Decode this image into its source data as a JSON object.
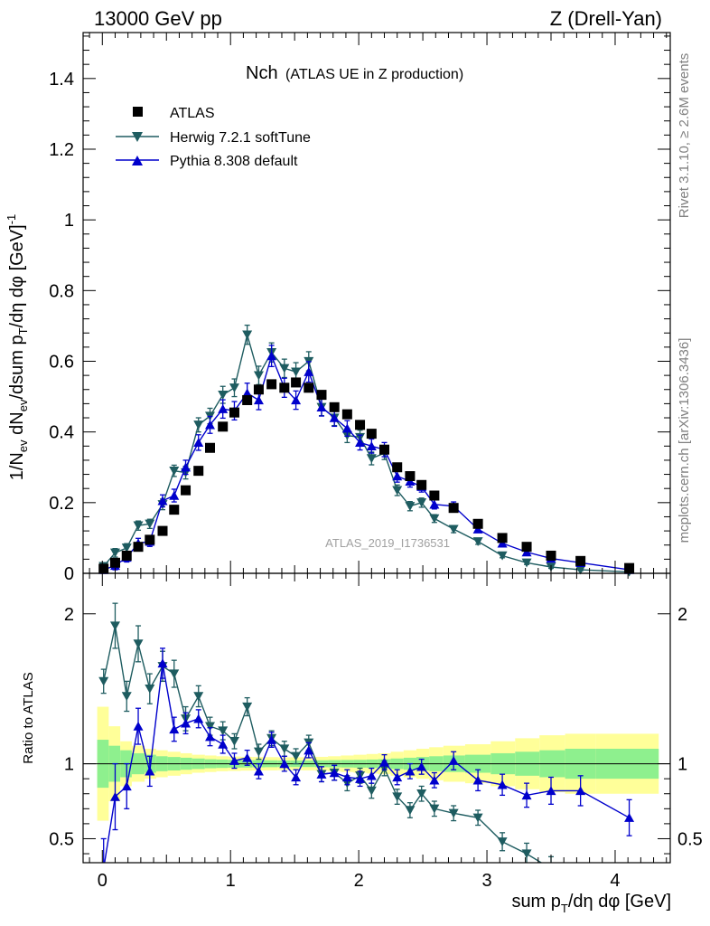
{
  "header": {
    "left": "13000 GeV pp",
    "right": "Z (Drell-Yan)"
  },
  "side_text": {
    "rivet": "Rivet 3.1.10, ≥ 2.6M events",
    "mcplots": "mcplots.cern.ch [arXiv:1306.3436]"
  },
  "chart_data": {
    "type": "scatter",
    "title_main": "Nch",
    "title_sub": "(ATLAS UE in Z production)",
    "analysis_label": "ATLAS_2019_I1736531",
    "xlabel": "sum pT/dη dφ [GeV]",
    "ylabel": "1/Nev dNev/dsum pT/dη dφ [GeV]^-1",
    "ratio_ylabel": "Ratio to ATLAS",
    "xlim": [
      -0.15,
      4.43
    ],
    "ylim": [
      0,
      1.53
    ],
    "ratio_ylim": [
      0.34,
      2.27
    ],
    "x_ticks": [
      0,
      1,
      2,
      3,
      4
    ],
    "y_ticks": [
      0,
      0.2,
      0.4,
      0.6,
      0.8,
      1,
      1.2,
      1.4
    ],
    "ratio_ticks": [
      0.5,
      1,
      2
    ],
    "ratio_tick_labels": [
      "0.5",
      "1",
      "2"
    ],
    "legend_position": "top-left",
    "colors": {
      "atlas": "#000000",
      "herwig": "#1e5c60",
      "pythia": "#0000cc",
      "band_inner": "#8ef08e",
      "band_outer": "#ffff99"
    },
    "series": [
      {
        "name": "ATLAS",
        "marker": "square",
        "x": [
          0.01,
          0.1,
          0.19,
          0.28,
          0.37,
          0.47,
          0.56,
          0.65,
          0.75,
          0.84,
          0.94,
          1.03,
          1.13,
          1.22,
          1.32,
          1.42,
          1.51,
          1.61,
          1.71,
          1.81,
          1.91,
          2.01,
          2.1,
          2.2,
          2.3,
          2.4,
          2.49,
          2.59,
          2.74,
          2.93,
          3.12,
          3.31,
          3.5,
          3.73,
          4.11
        ],
        "y": [
          0.013,
          0.03,
          0.05,
          0.075,
          0.095,
          0.12,
          0.18,
          0.235,
          0.29,
          0.355,
          0.415,
          0.455,
          0.49,
          0.52,
          0.535,
          0.525,
          0.54,
          0.525,
          0.505,
          0.47,
          0.45,
          0.42,
          0.395,
          0.35,
          0.3,
          0.275,
          0.25,
          0.22,
          0.185,
          0.14,
          0.1,
          0.075,
          0.05,
          0.035,
          0.015
        ]
      },
      {
        "name": "Herwig 7.2.1 softTune",
        "marker": "triangle-down",
        "x": [
          0.01,
          0.1,
          0.19,
          0.28,
          0.37,
          0.47,
          0.56,
          0.65,
          0.75,
          0.84,
          0.94,
          1.03,
          1.13,
          1.22,
          1.32,
          1.42,
          1.51,
          1.61,
          1.71,
          1.81,
          1.91,
          2.01,
          2.1,
          2.2,
          2.3,
          2.4,
          2.49,
          2.59,
          2.74,
          2.93,
          3.12,
          3.31,
          3.5,
          3.73,
          4.11
        ],
        "y": [
          0.02,
          0.058,
          0.072,
          0.135,
          0.14,
          0.195,
          0.29,
          0.285,
          0.42,
          0.445,
          0.505,
          0.525,
          0.675,
          0.56,
          0.625,
          0.58,
          0.57,
          0.6,
          0.47,
          0.44,
          0.39,
          0.385,
          0.325,
          0.34,
          0.235,
          0.19,
          0.2,
          0.155,
          0.125,
          0.09,
          0.05,
          0.03,
          0.018,
          0.01,
          0.004
        ],
        "err": [
          0.01,
          0.012,
          0.012,
          0.013,
          0.013,
          0.015,
          0.016,
          0.018,
          0.02,
          0.022,
          0.024,
          0.025,
          0.027,
          0.026,
          0.027,
          0.026,
          0.026,
          0.027,
          0.024,
          0.022,
          0.02,
          0.02,
          0.018,
          0.018,
          0.015,
          0.013,
          0.013,
          0.011,
          0.01,
          0.008,
          0.006,
          0.005,
          0.004,
          0.003,
          0.002
        ]
      },
      {
        "name": "Pythia 8.308 default",
        "marker": "triangle-up",
        "x": [
          0.01,
          0.1,
          0.19,
          0.28,
          0.37,
          0.47,
          0.56,
          0.65,
          0.75,
          0.84,
          0.94,
          1.03,
          1.13,
          1.22,
          1.32,
          1.42,
          1.51,
          1.61,
          1.71,
          1.81,
          1.91,
          2.01,
          2.1,
          2.2,
          2.3,
          2.4,
          2.49,
          2.59,
          2.74,
          2.93,
          3.12,
          3.31,
          3.5,
          3.73,
          4.11
        ],
        "y": [
          0.01,
          0.022,
          0.045,
          0.085,
          0.09,
          0.205,
          0.22,
          0.3,
          0.37,
          0.42,
          0.465,
          0.46,
          0.51,
          0.49,
          0.615,
          0.525,
          0.49,
          0.57,
          0.47,
          0.44,
          0.41,
          0.37,
          0.36,
          0.35,
          0.275,
          0.26,
          0.245,
          0.195,
          0.19,
          0.125,
          0.085,
          0.06,
          0.042,
          0.03,
          0.01
        ],
        "err": [
          0.01,
          0.012,
          0.013,
          0.014,
          0.014,
          0.017,
          0.018,
          0.02,
          0.022,
          0.024,
          0.026,
          0.026,
          0.028,
          0.027,
          0.03,
          0.027,
          0.026,
          0.029,
          0.025,
          0.024,
          0.022,
          0.021,
          0.02,
          0.02,
          0.017,
          0.016,
          0.015,
          0.013,
          0.012,
          0.009,
          0.007,
          0.006,
          0.005,
          0.004,
          0.003
        ]
      }
    ],
    "ratio_series": [
      {
        "name": "Herwig 7.2.1 softTune",
        "x": [
          0.01,
          0.1,
          0.19,
          0.28,
          0.37,
          0.47,
          0.56,
          0.65,
          0.75,
          0.84,
          0.94,
          1.03,
          1.13,
          1.22,
          1.32,
          1.42,
          1.51,
          1.61,
          1.71,
          1.81,
          1.91,
          2.01,
          2.1,
          2.2,
          2.3,
          2.4,
          2.49,
          2.59,
          2.74,
          2.93,
          3.12,
          3.31,
          3.5
        ],
        "y": [
          1.55,
          1.92,
          1.45,
          1.8,
          1.5,
          1.65,
          1.6,
          1.3,
          1.45,
          1.25,
          1.22,
          1.15,
          1.38,
          1.08,
          1.17,
          1.1,
          1.05,
          1.14,
          0.93,
          0.94,
          0.87,
          0.92,
          0.82,
          0.97,
          0.78,
          0.69,
          0.8,
          0.7,
          0.67,
          0.64,
          0.48,
          0.4,
          0.3
        ],
        "err": [
          0.08,
          0.15,
          0.1,
          0.12,
          0.1,
          0.1,
          0.09,
          0.08,
          0.07,
          0.06,
          0.06,
          0.05,
          0.06,
          0.05,
          0.05,
          0.05,
          0.05,
          0.05,
          0.05,
          0.05,
          0.05,
          0.05,
          0.05,
          0.05,
          0.05,
          0.05,
          0.05,
          0.05,
          0.05,
          0.05,
          0.06,
          0.07,
          0.08
        ]
      },
      {
        "name": "Pythia 8.308 default",
        "x": [
          0.01,
          0.1,
          0.19,
          0.28,
          0.37,
          0.47,
          0.56,
          0.65,
          0.75,
          0.84,
          0.94,
          1.03,
          1.13,
          1.22,
          1.32,
          1.42,
          1.51,
          1.61,
          1.71,
          1.81,
          1.91,
          2.01,
          2.1,
          2.2,
          2.3,
          2.4,
          2.49,
          2.59,
          2.74,
          2.93,
          3.12,
          3.31,
          3.5,
          3.73,
          4.11
        ],
        "y": [
          0.3,
          0.78,
          0.85,
          1.25,
          0.95,
          1.67,
          1.23,
          1.27,
          1.3,
          1.18,
          1.13,
          1.02,
          1.04,
          0.95,
          1.16,
          1.0,
          0.91,
          1.09,
          0.93,
          0.94,
          0.91,
          0.9,
          0.92,
          1.01,
          0.91,
          0.95,
          0.98,
          0.89,
          1.02,
          0.89,
          0.86,
          0.79,
          0.82,
          0.82,
          0.64
        ],
        "err": [
          0.2,
          0.22,
          0.15,
          0.12,
          0.1,
          0.1,
          0.08,
          0.07,
          0.06,
          0.06,
          0.06,
          0.05,
          0.05,
          0.05,
          0.05,
          0.05,
          0.05,
          0.05,
          0.05,
          0.05,
          0.05,
          0.05,
          0.05,
          0.05,
          0.05,
          0.05,
          0.05,
          0.05,
          0.06,
          0.07,
          0.07,
          0.08,
          0.09,
          0.1,
          0.12
        ]
      }
    ],
    "uncertainty_bands": {
      "edges": [
        -0.04,
        0.05,
        0.14,
        0.23,
        0.33,
        0.42,
        0.51,
        0.61,
        0.7,
        0.8,
        0.89,
        0.98,
        1.08,
        1.17,
        1.27,
        1.37,
        1.47,
        1.56,
        1.66,
        1.76,
        1.86,
        1.96,
        2.06,
        2.15,
        2.25,
        2.35,
        2.45,
        2.55,
        2.66,
        2.83,
        3.03,
        3.22,
        3.41,
        3.61,
        3.85,
        4.34
      ],
      "inner": [
        0.16,
        0.12,
        0.09,
        0.07,
        0.06,
        0.05,
        0.045,
        0.04,
        0.035,
        0.03,
        0.028,
        0.026,
        0.025,
        0.024,
        0.023,
        0.022,
        0.022,
        0.022,
        0.023,
        0.024,
        0.025,
        0.026,
        0.028,
        0.03,
        0.035,
        0.04,
        0.045,
        0.05,
        0.055,
        0.06,
        0.07,
        0.08,
        0.09,
        0.1,
        0.1
      ],
      "outer": [
        0.38,
        0.25,
        0.15,
        0.12,
        0.1,
        0.09,
        0.08,
        0.07,
        0.06,
        0.055,
        0.05,
        0.048,
        0.046,
        0.045,
        0.044,
        0.043,
        0.043,
        0.044,
        0.046,
        0.05,
        0.055,
        0.06,
        0.065,
        0.07,
        0.08,
        0.09,
        0.1,
        0.11,
        0.12,
        0.13,
        0.15,
        0.17,
        0.19,
        0.2,
        0.2
      ]
    }
  }
}
